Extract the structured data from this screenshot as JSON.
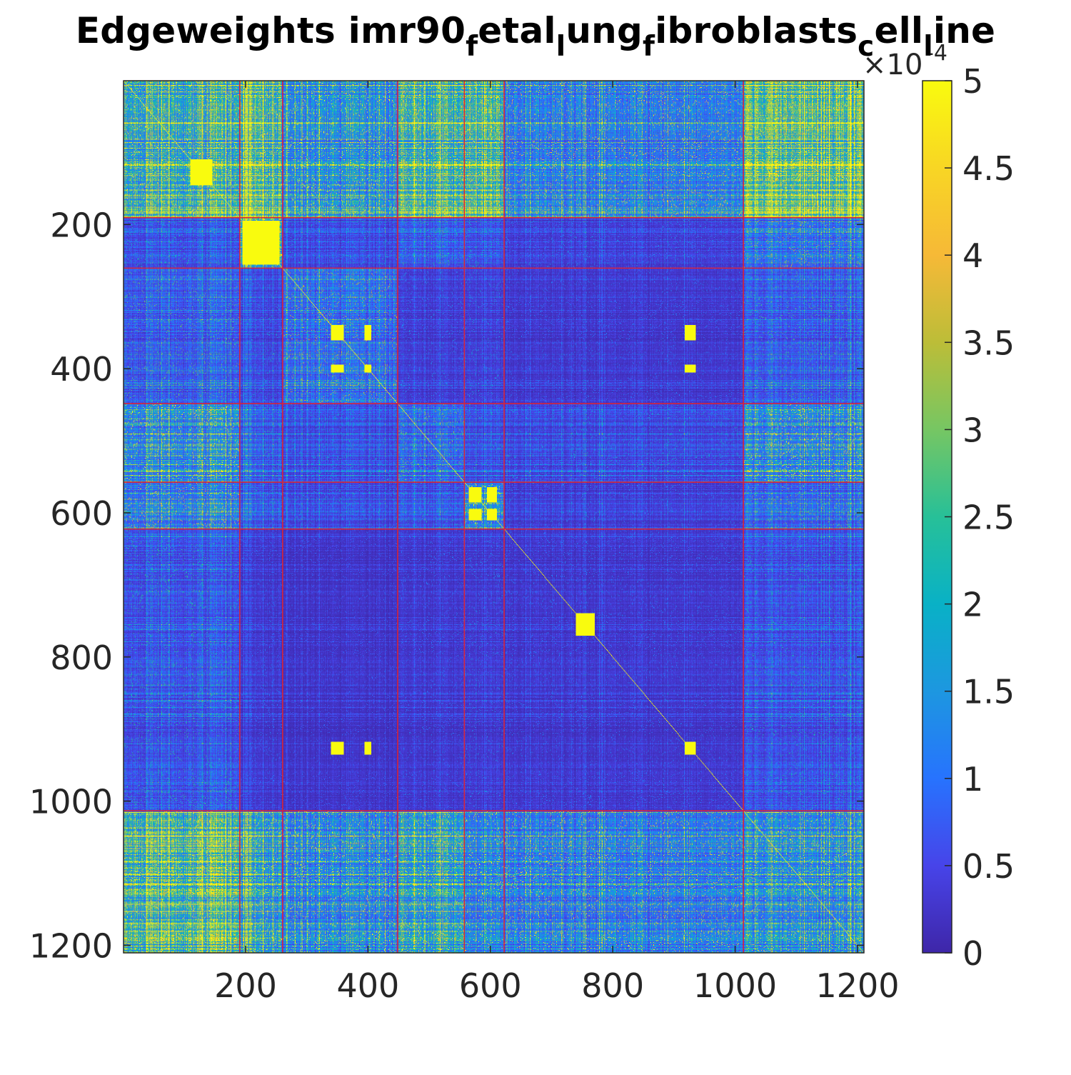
{
  "chart_data": {
    "type": "heatmap",
    "title_parts": [
      {
        "text": "Edgeweights imr90",
        "sub": false
      },
      {
        "text": "f",
        "sub": true
      },
      {
        "text": "etal",
        "sub": false
      },
      {
        "text": "l",
        "sub": true
      },
      {
        "text": "ung",
        "sub": false
      },
      {
        "text": "f",
        "sub": true
      },
      {
        "text": "ibroblasts",
        "sub": false
      },
      {
        "text": "c",
        "sub": true
      },
      {
        "text": "ell",
        "sub": false
      },
      {
        "text": "l",
        "sub": true
      },
      {
        "text": "ine",
        "sub": false
      }
    ],
    "n": 1210,
    "xlim": [
      0.5,
      1210.5
    ],
    "ylim": [
      0.5,
      1210.5
    ],
    "x_ticks": [
      200,
      400,
      600,
      800,
      1000,
      1200
    ],
    "y_ticks": [
      200,
      400,
      600,
      800,
      1000,
      1200
    ],
    "y_direction": "reverse",
    "color_limits": [
      0,
      0.0005
    ],
    "colormap": "parula",
    "colorbar": {
      "location": "right",
      "ticks": [
        0,
        0.5,
        1,
        1.5,
        2,
        2.5,
        3,
        3.5,
        4,
        4.5,
        5
      ],
      "tick_labels": [
        "0",
        "0.5",
        "1",
        "1.5",
        "2",
        "2.5",
        "3",
        "3.5",
        "4",
        "4.5",
        "5"
      ],
      "exponent_label": "×10",
      "exponent": "-4"
    },
    "cluster_boundaries": [
      190,
      260,
      448,
      557,
      622,
      1013
    ],
    "boundary_color": "#d6243a",
    "block_mean_values_x1e4": [
      [
        3.6,
        3.9,
        2.4,
        3.8,
        4.4,
        2.0,
        4.6
      ],
      [
        1.0,
        3.2,
        0.8,
        1.1,
        1.0,
        0.6,
        1.6
      ],
      [
        1.3,
        0.8,
        1.6,
        0.6,
        0.7,
        0.5,
        1.2
      ],
      [
        2.4,
        1.1,
        0.9,
        1.4,
        1.0,
        0.8,
        2.2
      ],
      [
        2.0,
        1.0,
        0.8,
        1.0,
        2.4,
        0.6,
        1.4
      ],
      [
        1.1,
        0.5,
        0.4,
        0.5,
        0.6,
        0.5,
        1.0
      ],
      [
        4.6,
        3.0,
        2.3,
        3.2,
        2.4,
        2.1,
        2.6
      ]
    ],
    "hot_blocks": [
      {
        "rows": [
          110,
          145
        ],
        "cols": [
          110,
          145
        ]
      },
      {
        "rows": [
          195,
          255
        ],
        "cols": [
          195,
          255
        ]
      },
      {
        "rows": [
          340,
          360
        ],
        "cols": [
          340,
          360
        ]
      },
      {
        "rows": [
          340,
          360
        ],
        "cols": [
          395,
          405
        ]
      },
      {
        "rows": [
          395,
          405
        ],
        "cols": [
          340,
          360
        ]
      },
      {
        "rows": [
          395,
          405
        ],
        "cols": [
          395,
          405
        ]
      },
      {
        "rows": [
          565,
          585
        ],
        "cols": [
          565,
          585
        ]
      },
      {
        "rows": [
          595,
          610
        ],
        "cols": [
          595,
          610
        ]
      },
      {
        "rows": [
          565,
          585
        ],
        "cols": [
          595,
          610
        ]
      },
      {
        "rows": [
          595,
          610
        ],
        "cols": [
          565,
          585
        ]
      },
      {
        "rows": [
          740,
          770
        ],
        "cols": [
          740,
          770
        ]
      },
      {
        "rows": [
          918,
          935
        ],
        "cols": [
          918,
          935
        ]
      },
      {
        "rows": [
          340,
          360
        ],
        "cols": [
          918,
          935
        ]
      },
      {
        "rows": [
          918,
          935
        ],
        "cols": [
          340,
          360
        ]
      },
      {
        "rows": [
          395,
          405
        ],
        "cols": [
          918,
          935
        ]
      },
      {
        "rows": [
          918,
          935
        ],
        "cols": [
          395,
          405
        ]
      }
    ]
  }
}
